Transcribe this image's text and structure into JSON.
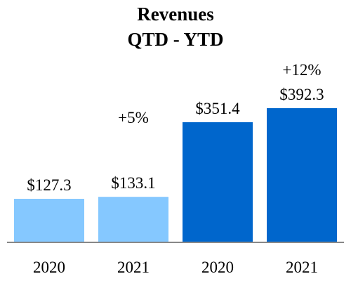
{
  "chart_data": {
    "type": "bar",
    "title_line1": "Revenues",
    "title_line2": "QTD - YTD",
    "categories": [
      "2020",
      "2021",
      "2020",
      "2021"
    ],
    "values": [
      127.3,
      133.1,
      351.4,
      392.3
    ],
    "value_labels": [
      "$127.3",
      "$133.1",
      "$351.4",
      "$392.3"
    ],
    "groups": [
      "QTD",
      "QTD",
      "YTD",
      "YTD"
    ],
    "colors": [
      "#85C8FF",
      "#85C8FF",
      "#0066CC",
      "#0066CC"
    ],
    "growth": [
      {
        "label": "+5%",
        "group": "QTD"
      },
      {
        "label": "+12%",
        "group": "YTD"
      }
    ],
    "ylim": [
      0,
      392.3
    ],
    "grid": false,
    "axis_color": "#888888"
  }
}
